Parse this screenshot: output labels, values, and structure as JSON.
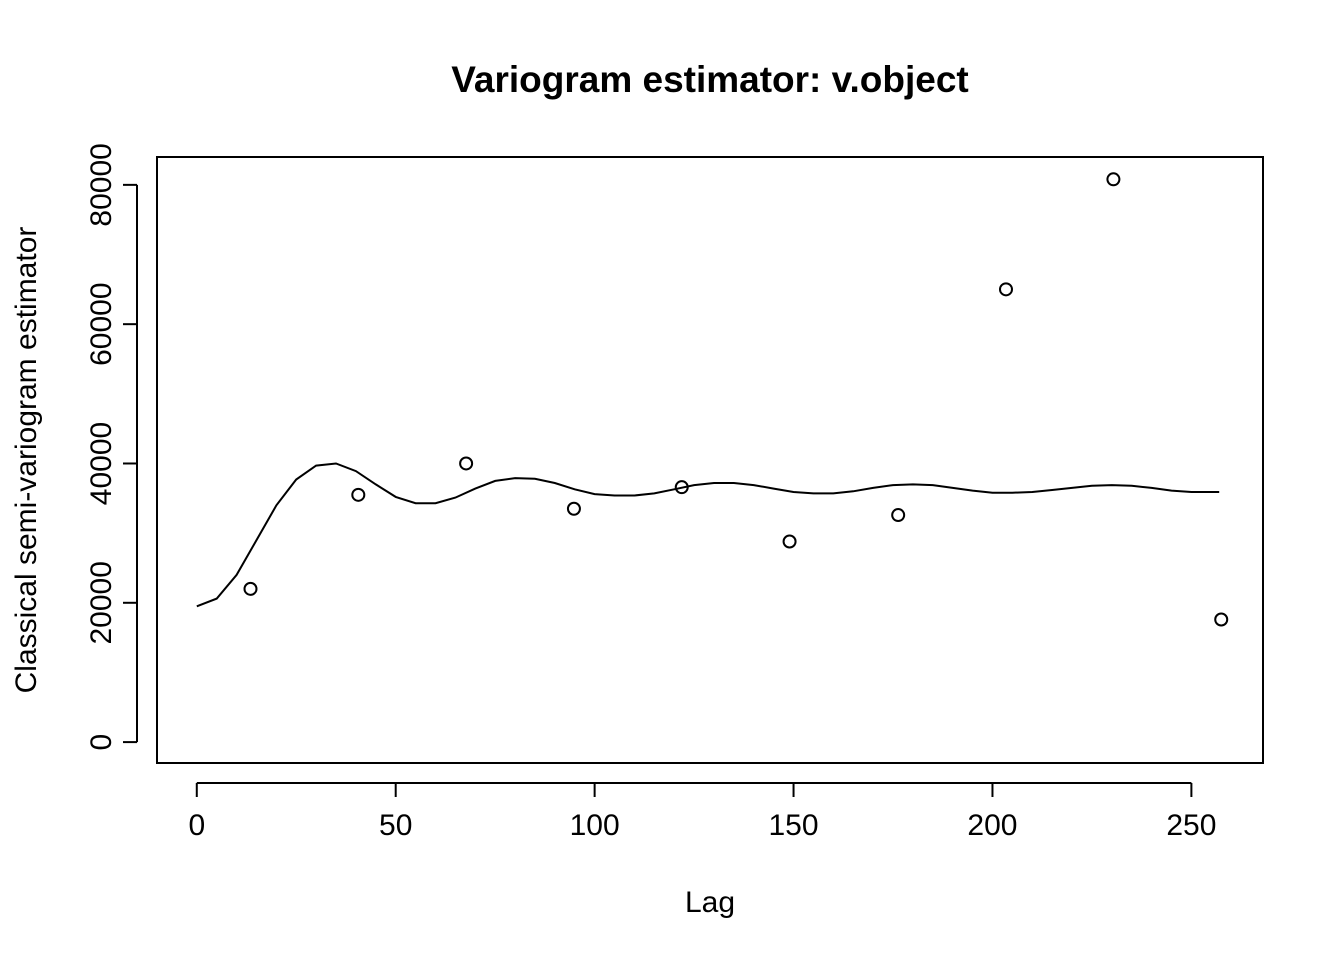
{
  "chart_data": {
    "type": "scatter",
    "title": "Variogram estimator: v.object",
    "xlabel": "Lag",
    "ylabel": "Classical semi-variogram estimator",
    "xlim": [
      -10,
      268
    ],
    "ylim": [
      -3000,
      84000
    ],
    "x_ticks": [
      0,
      50,
      100,
      150,
      200,
      250
    ],
    "y_ticks": [
      0,
      20000,
      40000,
      60000,
      80000
    ],
    "series": [
      {
        "kind": "points",
        "x": [
          13.5,
          40.6,
          67.7,
          94.8,
          121.9,
          149.0,
          176.3,
          203.4,
          230.4,
          257.5
        ],
        "y": [
          22000,
          35500,
          40000,
          33500,
          36600,
          28800,
          32600,
          65000,
          80800,
          17600
        ]
      },
      {
        "kind": "line",
        "x": [
          0,
          5,
          10,
          15,
          20,
          25,
          30,
          35,
          40,
          45,
          50,
          55,
          60,
          65,
          70,
          75,
          80,
          85,
          90,
          95,
          100,
          105,
          110,
          115,
          120,
          125,
          130,
          135,
          140,
          145,
          150,
          155,
          160,
          165,
          170,
          175,
          180,
          185,
          190,
          195,
          200,
          205,
          210,
          215,
          220,
          225,
          230,
          235,
          240,
          245,
          250,
          257
        ],
        "y": [
          19500,
          20600,
          24000,
          29000,
          34000,
          37700,
          39700,
          40000,
          38900,
          37000,
          35200,
          34300,
          34300,
          35100,
          36400,
          37500,
          37900,
          37800,
          37200,
          36300,
          35600,
          35400,
          35400,
          35700,
          36300,
          36900,
          37200,
          37200,
          36900,
          36400,
          35900,
          35700,
          35700,
          36000,
          36500,
          36900,
          37000,
          36900,
          36500,
          36100,
          35800,
          35800,
          35900,
          36200,
          36500,
          36800,
          36900,
          36800,
          36500,
          36100,
          35900,
          35900
        ]
      }
    ]
  }
}
